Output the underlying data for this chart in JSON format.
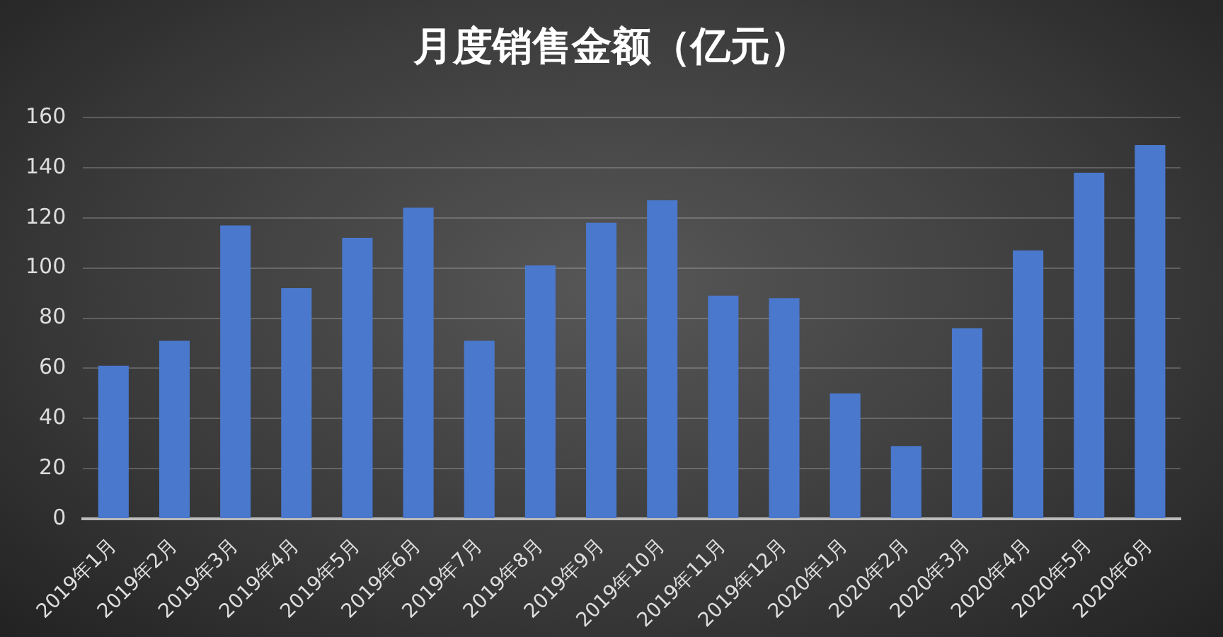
{
  "chart_data": {
    "type": "bar",
    "title": "月度销售金额（亿元）",
    "categories": [
      "2019年1月",
      "2019年2月",
      "2019年3月",
      "2019年4月",
      "2019年5月",
      "2019年6月",
      "2019年7月",
      "2019年8月",
      "2019年9月",
      "2019年10月",
      "2019年11月",
      "2019年12月",
      "2020年1月",
      "2020年2月",
      "2020年3月",
      "2020年4月",
      "2020年5月",
      "2020年6月"
    ],
    "values": [
      61,
      71,
      117,
      92,
      112,
      124,
      71,
      101,
      118,
      127,
      89,
      88,
      50,
      29,
      76,
      107,
      138,
      149
    ],
    "color": "#4a78cc",
    "ylim": [
      0,
      160
    ],
    "yticks": [
      0,
      20,
      40,
      60,
      80,
      100,
      120,
      140,
      160
    ],
    "grid": "y"
  }
}
